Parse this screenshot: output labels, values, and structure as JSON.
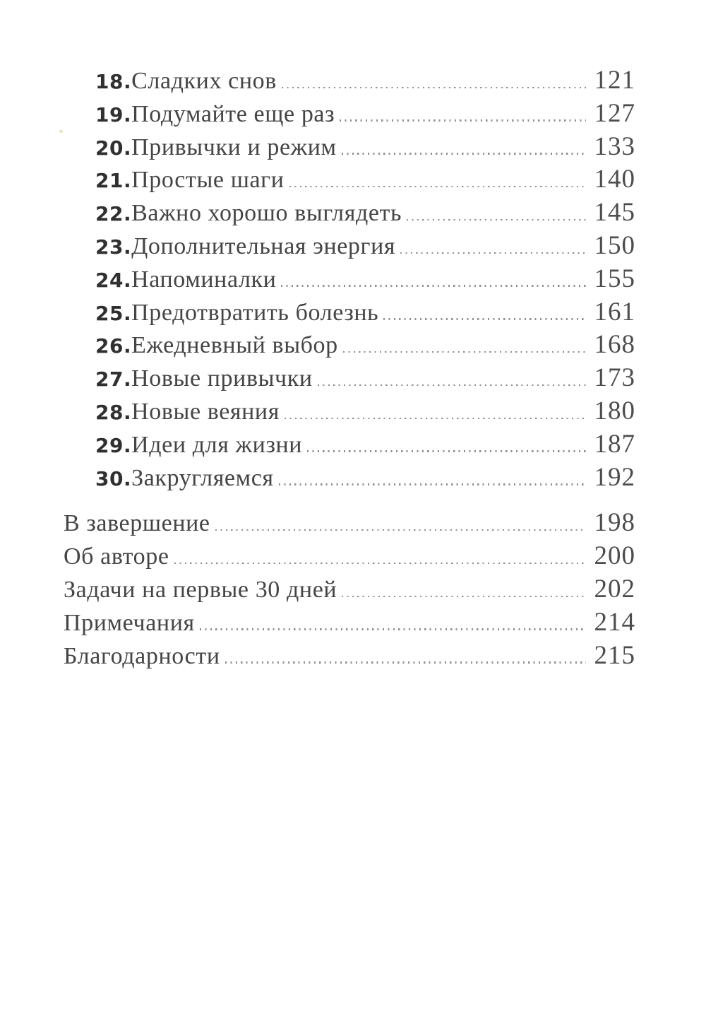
{
  "page": {
    "background": "#ffffff",
    "title_color": "#454545",
    "number_color": "#303030",
    "page_number_color": "#4d4d4d",
    "leader_color": "#8f8f8f",
    "speck_color": "#d9c87e"
  },
  "toc": {
    "numbered": [
      {
        "num": "18.",
        "title": "Сладких снов",
        "page": "121"
      },
      {
        "num": "19.",
        "title": "Подумайте еще раз",
        "page": "127"
      },
      {
        "num": "20.",
        "title": "Привычки и режим",
        "page": "133"
      },
      {
        "num": "21.",
        "title": "Простые шаги",
        "page": "140"
      },
      {
        "num": "22.",
        "title": "Важно хорошо выглядеть",
        "page": "145"
      },
      {
        "num": "23.",
        "title": "Дополнительная энергия",
        "page": "150"
      },
      {
        "num": "24.",
        "title": "Напоминалки",
        "page": "155"
      },
      {
        "num": "25.",
        "title": "Предотвратить болезнь",
        "page": "161"
      },
      {
        "num": "26.",
        "title": "Ежедневный выбор",
        "page": "168"
      },
      {
        "num": "27.",
        "title": "Новые привычки",
        "page": "173"
      },
      {
        "num": "28.",
        "title": "Новые веяния",
        "page": "180"
      },
      {
        "num": "29.",
        "title": "Идеи для жизни",
        "page": "187"
      },
      {
        "num": "30.",
        "title": "Закругляемся",
        "page": "192"
      }
    ],
    "back_matter": [
      {
        "title": "В завершение",
        "page": "198"
      },
      {
        "title": "Об авторе",
        "page": "200"
      },
      {
        "title": "Задачи на первые 30 дней",
        "page": "202"
      },
      {
        "title": "Примечания",
        "page": "214"
      },
      {
        "title": "Благодарности",
        "page": "215"
      }
    ]
  }
}
